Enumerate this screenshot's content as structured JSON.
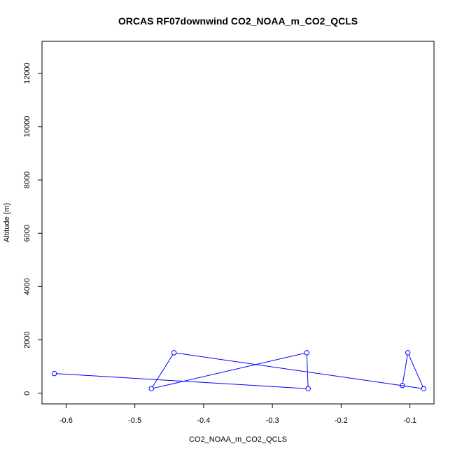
{
  "chart_data": {
    "type": "line",
    "title": "ORCAS RF07downwind CO2_NOAA_m_CO2_QCLS",
    "xlabel": "CO2_NOAA_m_CO2_QCLS",
    "ylabel": "Altitude (m)",
    "xlim": [
      -0.635,
      -0.065
    ],
    "ylim": [
      -400,
      13200
    ],
    "x_ticks": [
      -0.6,
      -0.5,
      -0.4,
      -0.3,
      -0.2,
      -0.1
    ],
    "x_tick_labels": [
      "-0.6",
      "-0.5",
      "-0.4",
      "-0.3",
      "-0.2",
      "-0.1"
    ],
    "y_ticks": [
      0,
      2000,
      4000,
      6000,
      8000,
      10000,
      12000
    ],
    "y_tick_labels": [
      "0",
      "2000",
      "4000",
      "6000",
      "8000",
      "10000",
      "12000"
    ],
    "grid": false,
    "legend": "none",
    "series": [
      {
        "color": "#0000ff",
        "marker": "open-circle",
        "x": [
          -0.617,
          -0.248,
          -0.25,
          -0.476,
          -0.443,
          -0.08,
          -0.103,
          -0.111
        ],
        "y": [
          740,
          170,
          1520,
          170,
          1520,
          170,
          1520,
          290
        ]
      }
    ]
  }
}
